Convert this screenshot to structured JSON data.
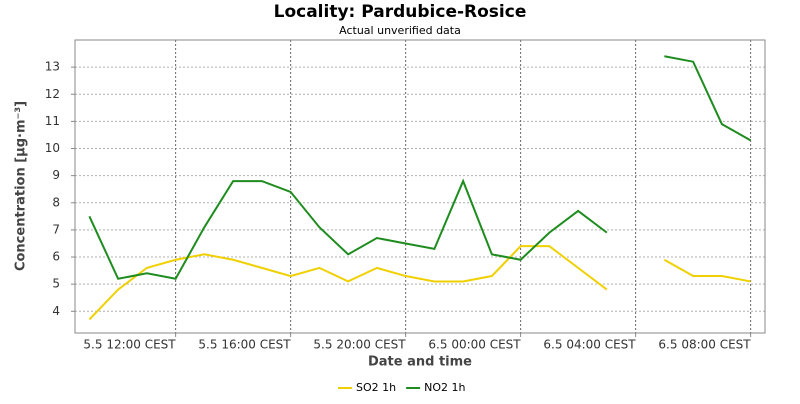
{
  "chart_data": {
    "type": "line",
    "title": "Locality: Pardubice-Rosice",
    "subtitle": "Actual unverified data",
    "x_label": "Date and time",
    "y_label": "Concentration [µg·m⁻³]",
    "x": [
      "5.5 09:00",
      "5.5 10:00",
      "5.5 11:00",
      "5.5 12:00",
      "5.5 13:00",
      "5.5 14:00",
      "5.5 15:00",
      "5.5 16:00",
      "5.5 17:00",
      "5.5 18:00",
      "5.5 19:00",
      "5.5 20:00",
      "5.5 21:00",
      "5.5 22:00",
      "5.5 23:00",
      "6.5 00:00",
      "6.5 01:00",
      "6.5 02:00",
      "6.5 03:00",
      "6.5 04:00",
      "6.5 05:00",
      "6.5 06:00",
      "6.5 07:00",
      "6.5 08:00"
    ],
    "series": [
      {
        "name": "SO2 1h",
        "color": "#f0d000",
        "values": [
          3.7,
          4.8,
          5.6,
          5.9,
          6.1,
          5.9,
          5.6,
          5.3,
          5.6,
          5.1,
          5.6,
          5.3,
          5.1,
          5.1,
          5.3,
          6.4,
          6.4,
          5.6,
          4.8,
          null,
          5.9,
          5.3,
          5.3,
          5.1
        ]
      },
      {
        "name": "NO2 1h",
        "color": "#1e8c1e",
        "values": [
          7.5,
          5.2,
          5.4,
          5.2,
          7.1,
          8.8,
          8.8,
          8.4,
          7.1,
          6.1,
          6.7,
          6.5,
          6.3,
          8.8,
          6.1,
          5.9,
          6.9,
          7.7,
          6.9,
          null,
          13.4,
          13.2,
          10.9,
          10.3
        ]
      }
    ],
    "xlim": [
      "5.5 08:30",
      "6.5 08:30"
    ],
    "xticks": [
      {
        "value": "5.5 12:00",
        "label": "5.5 12:00 CEST"
      },
      {
        "value": "5.5 16:00",
        "label": "5.5 16:00 CEST"
      },
      {
        "value": "5.5 20:00",
        "label": "5.5 20:00 CEST"
      },
      {
        "value": "6.5 00:00",
        "label": "6.5 00:00 CEST"
      },
      {
        "value": "6.5 04:00",
        "label": "6.5 04:00 CEST"
      },
      {
        "value": "6.5 08:00",
        "label": "6.5 08:00 CEST"
      }
    ],
    "ylim": [
      3.2,
      14.0
    ],
    "yticks": [
      4,
      5,
      6,
      7,
      8,
      9,
      10,
      11,
      12,
      13
    ],
    "grid": true,
    "legend": "bottom"
  }
}
